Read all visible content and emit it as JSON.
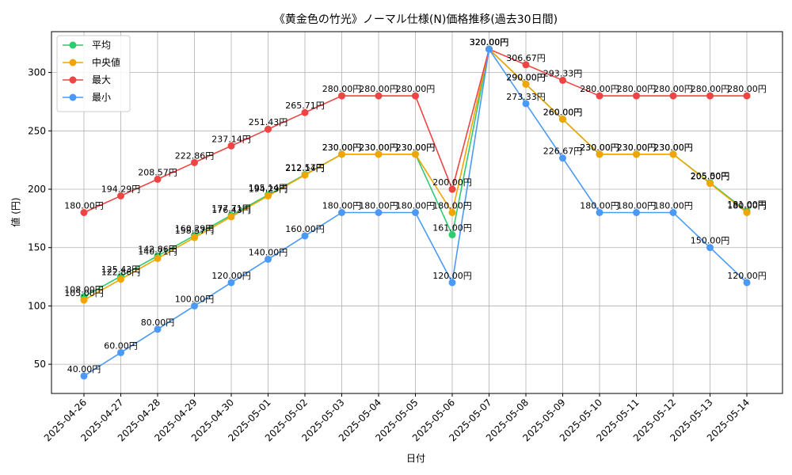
{
  "chart_data": {
    "type": "line",
    "title": "《黄金色の竹光》ノーマル仕様(N)価格推移(過去30日間)",
    "xlabel": "日付",
    "ylabel": "値 (円)",
    "value_suffix": "円",
    "ylim": [
      25,
      335
    ],
    "yticks": [
      50,
      100,
      150,
      200,
      250,
      300
    ],
    "grid": true,
    "legend_position": "top-left",
    "categories": [
      "2025-04-26",
      "2025-04-27",
      "2025-04-28",
      "2025-04-29",
      "2025-04-30",
      "2025-05-01",
      "2025-05-02",
      "2025-05-03",
      "2025-05-04",
      "2025-05-05",
      "2025-05-06",
      "2025-05-07",
      "2025-05-08",
      "2025-05-09",
      "2025-05-10",
      "2025-05-11",
      "2025-05-12",
      "2025-05-13",
      "2025-05-14"
    ],
    "series": [
      {
        "name": "平均",
        "color": "#2ecc71",
        "values": [
          108.0,
          125.43,
          142.86,
          160.29,
          177.71,
          195.14,
          212.57,
          230.0,
          230.0,
          230.0,
          161.0,
          320.0,
          290.0,
          260.0,
          230.0,
          230.0,
          230.0,
          205.5,
          181.0
        ]
      },
      {
        "name": "中央値",
        "color": "#f0a500",
        "values": [
          105.0,
          122.86,
          140.71,
          158.57,
          176.43,
          194.29,
          212.14,
          230.0,
          230.0,
          230.0,
          180.0,
          320.0,
          290.0,
          260.0,
          230.0,
          230.0,
          230.0,
          205.0,
          180.0
        ]
      },
      {
        "name": "最大",
        "color": "#ef4444",
        "values": [
          180.0,
          194.29,
          208.57,
          222.86,
          237.14,
          251.43,
          265.71,
          280.0,
          280.0,
          280.0,
          200.0,
          320.0,
          306.67,
          293.33,
          280.0,
          280.0,
          280.0,
          280.0,
          280.0
        ]
      },
      {
        "name": "最小",
        "color": "#4a9af5",
        "values": [
          40.0,
          60.0,
          80.0,
          100.0,
          120.0,
          140.0,
          160.0,
          180.0,
          180.0,
          180.0,
          120.0,
          320.0,
          273.33,
          226.67,
          180.0,
          180.0,
          180.0,
          150.0,
          120.0
        ]
      }
    ]
  }
}
